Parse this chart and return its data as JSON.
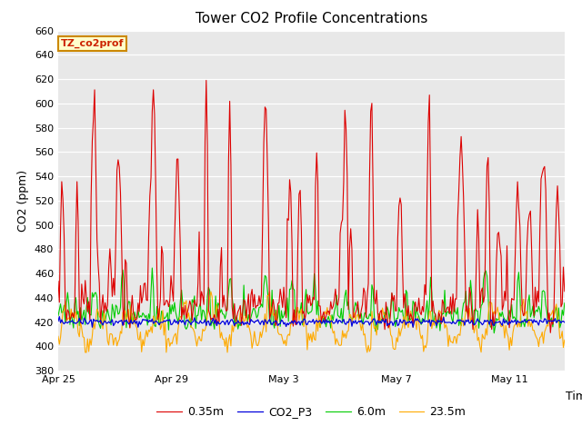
{
  "title": "Tower CO2 Profile Concentrations",
  "xlabel": "Time",
  "ylabel": "CO2 (ppm)",
  "ylim": [
    380,
    660
  ],
  "yticks": [
    380,
    400,
    420,
    440,
    460,
    480,
    500,
    520,
    540,
    560,
    580,
    600,
    620,
    640,
    660
  ],
  "fig_bg_color": "#ffffff",
  "plot_bg_color": "#e8e8e8",
  "grid_color": "#ffffff",
  "label_box_text": "TZ_co2prof",
  "label_box_facecolor": "#ffffcc",
  "label_box_edgecolor": "#cc8800",
  "lines": [
    {
      "label": "0.35m",
      "color": "#dd0000"
    },
    {
      "label": "CO2_P3",
      "color": "#0000dd"
    },
    {
      "label": "6.0m",
      "color": "#00cc00"
    },
    {
      "label": "23.5m",
      "color": "#ffaa00"
    }
  ],
  "n_points": 432,
  "xtick_labels": [
    "Apr 25",
    "Apr 29",
    "May 3",
    "May 7",
    "May 11"
  ],
  "xtick_positions": [
    0,
    96,
    192,
    288,
    384
  ]
}
